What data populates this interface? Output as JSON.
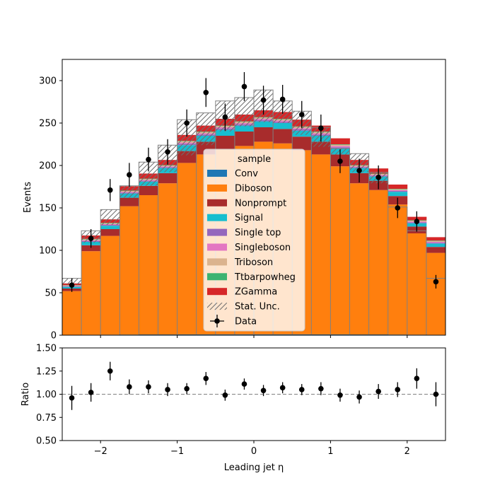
{
  "chart_data": [
    {
      "type": "bar",
      "title": "",
      "xlabel": "",
      "ylabel": "Events",
      "xlim": [
        -2.5,
        2.5
      ],
      "ylim": [
        0,
        325
      ],
      "yticks": [
        0,
        50,
        100,
        150,
        200,
        250,
        300
      ],
      "x_edges": [
        -2.5,
        -2.25,
        -2.0,
        -1.75,
        -1.5,
        -1.25,
        -1.0,
        -0.75,
        -0.5,
        -0.25,
        0.0,
        0.25,
        0.5,
        0.75,
        1.0,
        1.25,
        1.5,
        1.75,
        2.0,
        2.25,
        2.5
      ],
      "stacked": true,
      "series": [
        {
          "name": "Conv",
          "color": "#1f77b4",
          "values": [
            0.3,
            0.5,
            0.6,
            0.7,
            0.8,
            0.8,
            0.9,
            0.9,
            1.0,
            1.0,
            1.0,
            1.0,
            1.0,
            0.9,
            0.9,
            0.8,
            0.8,
            0.7,
            0.6,
            0.5
          ]
        },
        {
          "name": "Diboson",
          "color": "#ff7f0e",
          "values": [
            51.7,
            98.5,
            116.4,
            151.3,
            164.2,
            178.2,
            202.1,
            212.1,
            218.0,
            222.0,
            227.0,
            225.0,
            217.0,
            212.1,
            198.1,
            178.2,
            170.2,
            153.3,
            119.4,
            96.5
          ]
        },
        {
          "name": "Nonprompt",
          "color": "#a82c2c",
          "values": [
            3,
            7,
            8,
            10,
            11,
            12,
            14,
            15,
            16,
            17,
            17,
            17,
            16,
            15,
            14,
            12,
            11,
            10,
            8,
            7
          ]
        },
        {
          "name": "Signal",
          "color": "#17becf",
          "values": [
            2,
            4,
            4,
            5,
            5,
            6,
            7,
            7,
            7,
            7,
            7,
            7,
            7,
            7,
            7,
            6,
            5,
            5,
            4,
            4
          ]
        },
        {
          "name": "Single top",
          "color": "#9467bd",
          "values": [
            0.5,
            1,
            1,
            1,
            1,
            1,
            1.5,
            1.5,
            1.5,
            1.5,
            1.5,
            1.5,
            1.5,
            1.5,
            1.5,
            1,
            1,
            1,
            1,
            1
          ]
        },
        {
          "name": "Singleboson",
          "color": "#e377c2",
          "values": [
            0.5,
            1,
            1,
            1,
            1,
            1,
            1.5,
            1.5,
            1.5,
            1.5,
            1.5,
            1.5,
            1.5,
            1.5,
            1.5,
            1,
            1,
            1,
            1,
            1
          ]
        },
        {
          "name": "Triboson",
          "color": "#dbb38e",
          "values": [
            0.5,
            1,
            1,
            1,
            1,
            1,
            1.5,
            1.5,
            1.5,
            1.5,
            1.5,
            1.5,
            1.5,
            1.5,
            1.5,
            1,
            1,
            1,
            1,
            1
          ]
        },
        {
          "name": "Ttbarpowheg",
          "color": "#3cb371",
          "values": [
            0.5,
            0.5,
            0.5,
            0.5,
            0.5,
            0.5,
            0.5,
            0.5,
            0.5,
            0.5,
            0.5,
            0.5,
            0.5,
            0.5,
            0.5,
            0.5,
            0.5,
            0.5,
            0.5,
            0.5
          ]
        },
        {
          "name": "ZGamma",
          "color": "#d62728",
          "values": [
            2,
            4,
            4,
            5,
            6,
            6,
            7,
            7,
            8,
            8,
            8,
            8,
            8,
            7,
            7,
            6,
            6,
            5,
            4,
            4
          ]
        }
      ],
      "stat_unc_top": [
        67,
        123,
        148,
        176,
        204,
        224,
        254,
        262,
        276,
        280,
        289,
        276,
        264,
        245,
        220,
        214,
        192,
        151,
        123,
        67
      ],
      "stat_unc_bottom": [
        60,
        109,
        130,
        162,
        176,
        192,
        212,
        224,
        240,
        246,
        251,
        250,
        236,
        222,
        213,
        192,
        179,
        166,
        130,
        107
      ],
      "stat_unc_label": "Stat. Unc.",
      "data_series": {
        "name": "Data",
        "x": [
          -2.375,
          -2.125,
          -1.875,
          -1.625,
          -1.375,
          -1.125,
          -0.875,
          -0.625,
          -0.375,
          -0.125,
          0.125,
          0.375,
          0.625,
          0.875,
          1.125,
          1.375,
          1.625,
          1.875,
          2.125,
          2.375
        ],
        "y": [
          59,
          114,
          171,
          189,
          207,
          216,
          250,
          286,
          257,
          293,
          277,
          278,
          260,
          244,
          205,
          194,
          186,
          150,
          134,
          63
        ],
        "yerr": [
          8,
          11,
          13,
          14,
          14,
          15,
          16,
          17,
          16,
          17,
          17,
          17,
          16,
          16,
          14,
          14,
          14,
          12,
          12,
          8
        ]
      },
      "legend": {
        "title": "sample",
        "placement": "center"
      }
    },
    {
      "type": "scatter",
      "xlabel": "Leading jet  η",
      "ylabel": "Ratio",
      "xlim": [
        -2.5,
        2.5
      ],
      "ylim": [
        0.5,
        1.5
      ],
      "xticks": [
        -2,
        -1,
        0,
        1,
        2
      ],
      "yticks": [
        0.5,
        0.75,
        1.0,
        1.25,
        1.5
      ],
      "reference_line": 1.0,
      "x": [
        -2.375,
        -2.125,
        -1.875,
        -1.625,
        -1.375,
        -1.125,
        -0.875,
        -0.625,
        -0.375,
        -0.125,
        0.125,
        0.375,
        0.625,
        0.875,
        1.125,
        1.375,
        1.625,
        1.875,
        2.125,
        2.375
      ],
      "y": [
        0.96,
        1.02,
        1.25,
        1.08,
        1.08,
        1.05,
        1.06,
        1.17,
        0.99,
        1.11,
        1.04,
        1.07,
        1.05,
        1.06,
        0.99,
        0.97,
        1.03,
        1.05,
        1.17,
        1.0
      ],
      "yerr": [
        0.13,
        0.1,
        0.1,
        0.08,
        0.07,
        0.07,
        0.06,
        0.07,
        0.06,
        0.06,
        0.06,
        0.06,
        0.06,
        0.07,
        0.07,
        0.07,
        0.08,
        0.08,
        0.11,
        0.13
      ]
    }
  ]
}
